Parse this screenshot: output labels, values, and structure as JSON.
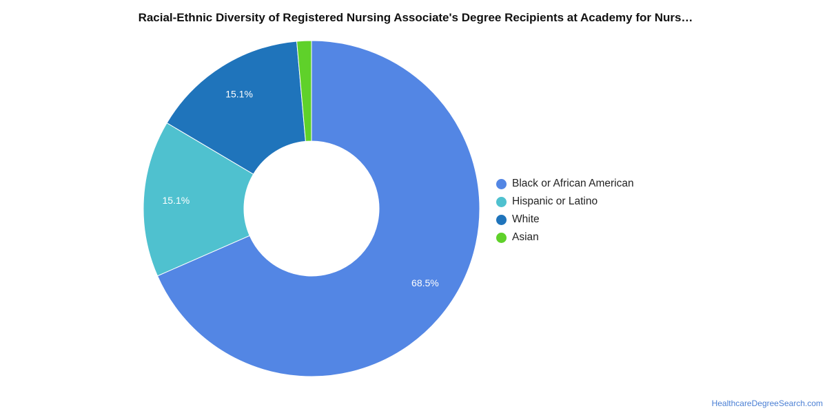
{
  "chart_data": {
    "type": "pie",
    "title": "Racial-Ethnic Diversity of Registered Nursing Associate's Degree Recipients at Academy for Nurs…",
    "series": [
      {
        "name": "Black or African American",
        "value": 68.5,
        "label": "68.5%",
        "color": "#5386e4"
      },
      {
        "name": "Hispanic or Latino",
        "value": 15.1,
        "label": "15.1%",
        "color": "#4fc1cf"
      },
      {
        "name": "White",
        "value": 15.1,
        "label": "15.1%",
        "color": "#1f74bb"
      },
      {
        "name": "Asian",
        "value": 1.4,
        "label": "",
        "color": "#5fd12a"
      }
    ],
    "legend_position": "right",
    "donut": true
  },
  "source": {
    "text": "HealthcareDegreeSearch.com"
  }
}
